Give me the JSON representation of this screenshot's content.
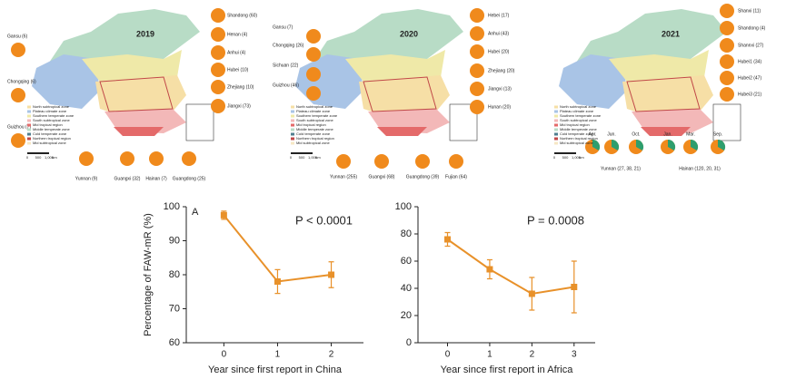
{
  "maps": [
    {
      "year": "2019",
      "labels": [
        "Gansu (6)",
        "Chongqing (6)",
        "Guizhou (7)",
        "Shandong (60)",
        "Henan (4)",
        "Anhui (4)",
        "Hubei (10)",
        "Zhejiang (10)",
        "Jiangxi (73)",
        "Yunnan (9)",
        "Guangxi (32)",
        "Hainan (7)",
        "Guangdong (25)"
      ]
    },
    {
      "year": "2020",
      "labels": [
        "Gansu (7)",
        "Chongqing (26)",
        "Sichuan (22)",
        "Guizhou (46)",
        "Hebei (17)",
        "Anhui (43)",
        "Hubei (20)",
        "Zhejiang (20)",
        "Jiangxi (13)",
        "Hunan (20)",
        "Yunnan (255)",
        "Guangxi (68)",
        "Guangdong (39)",
        "Fujian (64)"
      ]
    },
    {
      "year": "2021",
      "labels": [
        "Shanxi (11)",
        "Shandong (4)",
        "Shannxi (27)",
        "Hubei1 (34)",
        "Hubei2 (47)",
        "Hubei3 (21)",
        "Yunnan (27, 38, 21)",
        "Hainan (120, 20, 31)"
      ],
      "months": [
        "Apr.",
        "Jun.",
        "Oct.",
        "Jan.",
        "Mar.",
        "Sep."
      ]
    }
  ],
  "map_legend": [
    "North subtropical zone",
    "Plateau climate zone",
    "Southern temperate zone",
    "South subtropical zone",
    "Mid tropical region",
    "Middle temperate zone",
    "Cold temperate zone",
    "Northern tropical region",
    "Mid subtropical zone"
  ],
  "scale_labels": [
    "0",
    "500",
    "1,000",
    "km"
  ],
  "chart_data": [
    {
      "type": "line",
      "annotation": "A",
      "p_value": "P < 0.0001",
      "y_label": "Percentage of FAW-mR (%)",
      "x_label": "Year since first report in China",
      "x": [
        0,
        1,
        2
      ],
      "series": [
        {
          "color": "#e8912a",
          "values": [
            97.5,
            78,
            80
          ],
          "errors": [
            1.2,
            3.5,
            3.8
          ]
        }
      ],
      "xlim": [
        -0.7,
        2.6
      ],
      "xticks": [
        0,
        1,
        2
      ],
      "ylim": [
        60,
        100
      ],
      "yticks": [
        60,
        70,
        80,
        90,
        100
      ]
    },
    {
      "type": "line",
      "p_value": "P = 0.0008",
      "x_label": "Year since first report in Africa",
      "x": [
        0,
        1,
        2,
        3
      ],
      "series": [
        {
          "color": "#e8912a",
          "values": [
            76,
            54,
            36,
            41
          ],
          "errors": [
            5,
            7,
            12,
            19
          ]
        }
      ],
      "xlim": [
        -0.7,
        3.5
      ],
      "xticks": [
        0,
        1,
        2,
        3
      ],
      "ylim": [
        0,
        100
      ],
      "yticks": [
        0,
        20,
        40,
        60,
        80,
        100
      ]
    }
  ]
}
